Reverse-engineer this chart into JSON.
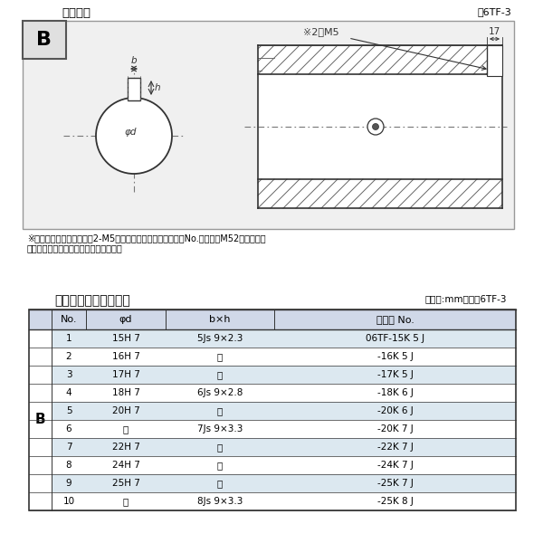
{
  "title_top": "軸穴形状",
  "fig_label_top": "囶6TF-3",
  "diagram_note1": "※セットボルト用タップ（2-M5）が必要な場合は右記コードNo.の末尾にM52を付ける。",
  "diagram_note2": "（セットボルトは付属されています。）",
  "table_title": "軸穴形状コード一覧表",
  "table_unit": "（単位:mm）　表6TF-3",
  "col_headers": [
    "No.",
    "φd",
    "b×h",
    "コード No."
  ],
  "row_label": "B",
  "rows": [
    [
      "1",
      "15H 7",
      "5Js 9×2.3",
      "06TF-15K 5 J"
    ],
    [
      "2",
      "16H 7",
      "〃",
      "-16K 5 J"
    ],
    [
      "3",
      "17H 7",
      "〃",
      "-17K 5 J"
    ],
    [
      "4",
      "18H 7",
      "6Js 9×2.8",
      "-18K 6 J"
    ],
    [
      "5",
      "20H 7",
      "〃",
      "-20K 6 J"
    ],
    [
      "6",
      "〃",
      "7Js 9×3.3",
      "-20K 7 J"
    ],
    [
      "7",
      "22H 7",
      "〃",
      "-22K 7 J"
    ],
    [
      "8",
      "24H 7",
      "〃",
      "-24K 7 J"
    ],
    [
      "9",
      "25H 7",
      "〃",
      "-25K 7 J"
    ],
    [
      "10",
      "〃",
      "8Js 9×3.3",
      "-25K 8 J"
    ]
  ],
  "bg_color": "#ffffff",
  "border_color": "#333333",
  "header_bg": "#d0d8e8",
  "alt_row_bg": "#dce8f0",
  "text_color": "#000000",
  "gray_color": "#888888",
  "outer_bg": "#f0f0f0"
}
